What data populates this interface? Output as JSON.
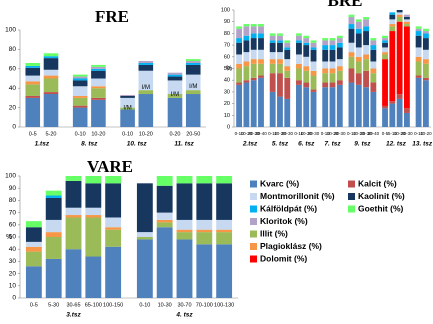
{
  "chart_data": [
    {
      "type": "stacked-bar",
      "title": "FRE",
      "ylim": [
        0,
        100
      ],
      "yticks": [
        0,
        20,
        40,
        60,
        80,
        100
      ],
      "groups": [
        {
          "label": "1.tsz",
          "categories": [
            "0-5",
            "5-20"
          ]
        },
        {
          "label": "8. tsz",
          "categories": [
            "0-10",
            "10-20"
          ]
        },
        {
          "label": "10. tsz",
          "categories": [
            "0-10",
            "10-20"
          ]
        },
        {
          "label": "11. tsz",
          "categories": [
            "0-20",
            "20-50"
          ]
        }
      ],
      "annotations": [
        null,
        null,
        null,
        null,
        "I/M",
        "I/M",
        "I/M",
        "I/M"
      ],
      "series": [
        {
          "name": "Kvarc (%)",
          "color": "#4f81bd",
          "values": [
            30,
            34,
            20,
            28,
            18,
            34,
            30,
            34
          ]
        },
        {
          "name": "Kalcit (%)",
          "color": "#c0504d",
          "values": [
            2,
            2,
            2,
            2,
            0,
            0,
            0,
            0
          ]
        },
        {
          "name": "Dolomit (%)",
          "color": "#ff0000",
          "values": [
            0,
            0,
            0,
            0,
            0,
            0,
            0,
            0
          ]
        },
        {
          "name": "Illit (%)",
          "color": "#9bbb59",
          "values": [
            12,
            14,
            8,
            10,
            2,
            4,
            4,
            4
          ]
        },
        {
          "name": "Plagioklász (%)",
          "color": "#f79646",
          "values": [
            3,
            3,
            2,
            2,
            0,
            0,
            0,
            0
          ]
        },
        {
          "name": "Montmorillonit (%)",
          "color": "#c6d9f1",
          "values": [
            6,
            6,
            10,
            8,
            10,
            20,
            14,
            16
          ]
        },
        {
          "name": "Kaolinit (%)",
          "color": "#17375e",
          "values": [
            8,
            12,
            6,
            8,
            2,
            6,
            4,
            10
          ]
        },
        {
          "name": "Kálföldpát (%)",
          "color": "#00b0f0",
          "values": [
            2,
            2,
            2,
            2,
            0,
            2,
            2,
            2
          ]
        },
        {
          "name": "Kloritok (%)",
          "color": "#b3a2c7",
          "values": [
            0,
            0,
            2,
            2,
            1,
            2,
            2,
            2
          ]
        },
        {
          "name": "Goethit (%)",
          "color": "#66ff66",
          "values": [
            3,
            3,
            2,
            2,
            0,
            0,
            0,
            2
          ]
        }
      ]
    },
    {
      "type": "stacked-bar",
      "title": "BRE",
      "ylabel": "%",
      "ylim": [
        0,
        100
      ],
      "yticks": [
        0,
        10,
        20,
        30,
        40,
        50,
        60,
        70,
        80,
        90,
        100
      ],
      "groups": [
        {
          "label": "2.tsz",
          "categories": [
            "0-10",
            "10-20",
            "20-30",
            "30-40"
          ]
        },
        {
          "label": "5. tsz",
          "categories": [
            "0-10",
            "10-20",
            "20-30"
          ]
        },
        {
          "label": "6. tsz",
          "categories": [
            "0-10",
            "10-20",
            "20-30"
          ]
        },
        {
          "label": "7. tsz",
          "categories": [
            "0-10",
            "10-20",
            "20-30"
          ]
        },
        {
          "label": "9. tsz",
          "categories": [
            "0-10",
            "10-20",
            "20-30",
            "30-40"
          ]
        },
        {
          "label": "12. tsz",
          "categories": [
            "0-5",
            "5-10",
            "10-20",
            "20-30"
          ]
        },
        {
          "label": "13. tsz",
          "categories": [
            "0-10",
            "10-20"
          ]
        }
      ],
      "series": [
        {
          "name": "Kvarc (%)",
          "color": "#4f81bd",
          "values": [
            36,
            38,
            40,
            42,
            30,
            26,
            24,
            36,
            34,
            30,
            34,
            34,
            36,
            38,
            36,
            34,
            30,
            16,
            20,
            24,
            12,
            42,
            40
          ]
        },
        {
          "name": "Kalcit (%)",
          "color": "#c0504d",
          "values": [
            2,
            2,
            2,
            2,
            16,
            20,
            18,
            4,
            4,
            2,
            4,
            4,
            4,
            12,
            10,
            14,
            8,
            2,
            2,
            4,
            4,
            2,
            2
          ]
        },
        {
          "name": "Dolomit (%)",
          "color": "#ff0000",
          "values": [
            0,
            0,
            0,
            0,
            0,
            0,
            0,
            0,
            0,
            0,
            0,
            0,
            0,
            0,
            0,
            0,
            0,
            40,
            60,
            62,
            70,
            0,
            0
          ]
        },
        {
          "name": "Illit (%)",
          "color": "#9bbb59",
          "values": [
            12,
            12,
            12,
            10,
            8,
            8,
            6,
            10,
            10,
            12,
            8,
            8,
            8,
            10,
            10,
            10,
            8,
            4,
            4,
            4,
            2,
            12,
            12
          ]
        },
        {
          "name": "Plagioklász (%)",
          "color": "#f79646",
          "values": [
            4,
            4,
            4,
            4,
            4,
            4,
            4,
            4,
            4,
            4,
            4,
            4,
            4,
            4,
            4,
            4,
            4,
            2,
            2,
            2,
            2,
            4,
            4
          ]
        },
        {
          "name": "Montmorillonit (%)",
          "color": "#c6d9f1",
          "values": [
            8,
            8,
            8,
            8,
            6,
            6,
            6,
            8,
            8,
            8,
            6,
            6,
            6,
            8,
            8,
            8,
            6,
            4,
            4,
            2,
            2,
            8,
            8
          ]
        },
        {
          "name": "Kaolinit (%)",
          "color": "#17375e",
          "values": [
            10,
            10,
            10,
            10,
            8,
            8,
            8,
            10,
            10,
            10,
            10,
            10,
            10,
            12,
            12,
            12,
            10,
            4,
            4,
            2,
            2,
            10,
            10
          ]
        },
        {
          "name": "Kálföldpát (%)",
          "color": "#00b0f0",
          "values": [
            4,
            4,
            4,
            4,
            2,
            2,
            2,
            2,
            2,
            2,
            4,
            4,
            4,
            4,
            4,
            4,
            4,
            2,
            2,
            0,
            0,
            4,
            4
          ]
        },
        {
          "name": "Kloritok (%)",
          "color": "#b3a2c7",
          "values": [
            8,
            8,
            6,
            6,
            4,
            4,
            4,
            4,
            4,
            4,
            4,
            4,
            4,
            6,
            6,
            6,
            4,
            2,
            0,
            0,
            2,
            2,
            2
          ]
        },
        {
          "name": "Goethit (%)",
          "color": "#66ff66",
          "values": [
            2,
            2,
            2,
            2,
            2,
            2,
            2,
            2,
            2,
            2,
            2,
            2,
            2,
            2,
            2,
            2,
            2,
            2,
            0,
            0,
            0,
            2,
            2
          ]
        }
      ]
    },
    {
      "type": "stacked-bar",
      "title": "VARE",
      "ylabel": "%",
      "ylim": [
        0,
        100
      ],
      "yticks": [
        0,
        10,
        20,
        30,
        40,
        50,
        60,
        70,
        80,
        90,
        100
      ],
      "groups": [
        {
          "label": "3.tsz",
          "categories": [
            "0-5",
            "5-30",
            "30-65",
            "65-100",
            "100-150"
          ]
        },
        {
          "label": "4. tsz",
          "categories": [
            "0-10",
            "10-30",
            "30-70",
            "70-100",
            "100-130"
          ]
        }
      ],
      "series": [
        {
          "name": "Kvarc (%)",
          "color": "#4f81bd",
          "values": [
            26,
            32,
            40,
            34,
            42,
            48,
            58,
            48,
            44,
            44
          ]
        },
        {
          "name": "Kalcit (%)",
          "color": "#c0504d",
          "values": [
            0,
            0,
            0,
            0,
            0,
            0,
            0,
            0,
            0,
            0
          ]
        },
        {
          "name": "Dolomit (%)",
          "color": "#ff0000",
          "values": [
            0,
            0,
            0,
            0,
            0,
            0,
            0,
            0,
            0,
            0
          ]
        },
        {
          "name": "Illit (%)",
          "color": "#9bbb59",
          "values": [
            12,
            18,
            26,
            32,
            14,
            2,
            4,
            6,
            10,
            10
          ]
        },
        {
          "name": "Plagioklász (%)",
          "color": "#f79646",
          "values": [
            4,
            4,
            2,
            2,
            2,
            0,
            2,
            2,
            2,
            2
          ]
        },
        {
          "name": "Montmorillonit (%)",
          "color": "#c6d9f1",
          "values": [
            4,
            10,
            6,
            6,
            8,
            4,
            6,
            8,
            8,
            8
          ]
        },
        {
          "name": "Kaolinit (%)",
          "color": "#17375e",
          "values": [
            12,
            18,
            22,
            20,
            28,
            40,
            22,
            30,
            30,
            30
          ]
        },
        {
          "name": "Kálföldpát (%)",
          "color": "#00b0f0",
          "values": [
            0,
            2,
            0,
            0,
            0,
            0,
            0,
            0,
            0,
            0
          ]
        },
        {
          "name": "Kloritok (%)",
          "color": "#b3a2c7",
          "values": [
            0,
            0,
            0,
            0,
            0,
            0,
            0,
            0,
            0,
            0
          ]
        },
        {
          "name": "Goethit (%)",
          "color": "#66ff66",
          "values": [
            5,
            4,
            4,
            6,
            6,
            0,
            8,
            6,
            6,
            6
          ]
        }
      ]
    }
  ]
}
